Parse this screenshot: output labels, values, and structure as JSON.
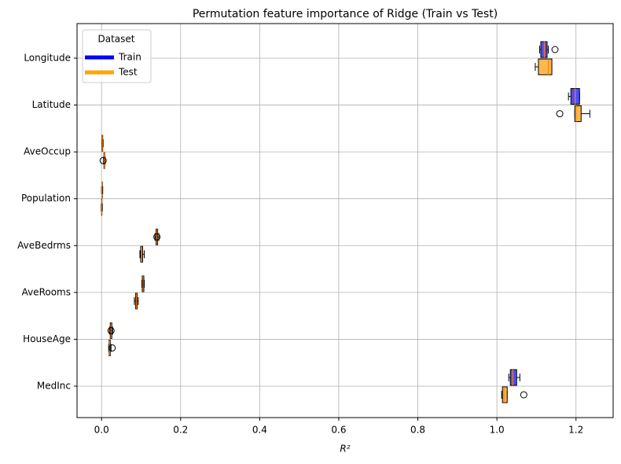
{
  "chart_data": {
    "type": "boxplot",
    "orientation": "horizontal",
    "title": "Permutation feature importance of Ridge (Train vs Test)",
    "x_label": "R²",
    "categories": [
      "Longitude",
      "Latitude",
      "AveOccup",
      "Population",
      "AveBedrms",
      "AveRooms",
      "HouseAge",
      "MedInc"
    ],
    "xlim": [
      -0.062,
      1.294
    ],
    "xticks": [
      {
        "value": 0,
        "label": "0.0"
      },
      0.2,
      0.4,
      0.6,
      0.8,
      {
        "value": 1,
        "label": "1.0"
      },
      1.2
    ],
    "grid": true,
    "legend_title": "Dataset",
    "legend_loc": "upper-left",
    "median_color": "#ff7f0e",
    "series": [
      {
        "name": "Train",
        "color": "blue",
        "fill": "#4d4dff",
        "min": [
          1.108,
          1.181,
          0.001,
          0.0,
          0.135,
          0.102,
          0.02,
          1.03
        ],
        "q1": [
          1.111,
          1.187,
          0.001,
          0.001,
          0.138,
          0.103,
          0.022,
          1.034
        ],
        "median": [
          1.12,
          1.198,
          0.002,
          0.001,
          0.14,
          0.105,
          0.024,
          1.04
        ],
        "q3": [
          1.127,
          1.209,
          0.003,
          0.002,
          0.142,
          0.107,
          0.026,
          1.05
        ],
        "max": [
          1.13,
          1.209,
          0.004,
          0.003,
          0.145,
          0.108,
          0.028,
          1.058
        ],
        "outliers": [
          [
            1.147
          ],
          [],
          [],
          [],
          [
            0.14
          ],
          [],
          [
            0.024
          ],
          []
        ]
      },
      {
        "name": "Test",
        "color": "orange",
        "fill": "#ffb84d",
        "min": [
          1.097,
          1.197,
          0.005,
          -0.001,
          0.097,
          0.083,
          0.018,
          1.012
        ],
        "q1": [
          1.105,
          1.197,
          0.006,
          0.0,
          0.099,
          0.086,
          0.019,
          1.014
        ],
        "median": [
          1.13,
          1.2,
          0.007,
          0.0,
          0.101,
          0.088,
          0.02,
          1.018
        ],
        "q3": [
          1.139,
          1.213,
          0.008,
          0.001,
          0.104,
          0.09,
          0.022,
          1.026
        ],
        "max": [
          1.139,
          1.235,
          0.009,
          0.002,
          0.108,
          0.093,
          0.024,
          1.026
        ],
        "outliers": [
          [],
          [
            1.159
          ],
          [
            0.004
          ],
          [],
          [],
          [],
          [
            0.027
          ],
          [
            1.068
          ]
        ]
      }
    ]
  }
}
